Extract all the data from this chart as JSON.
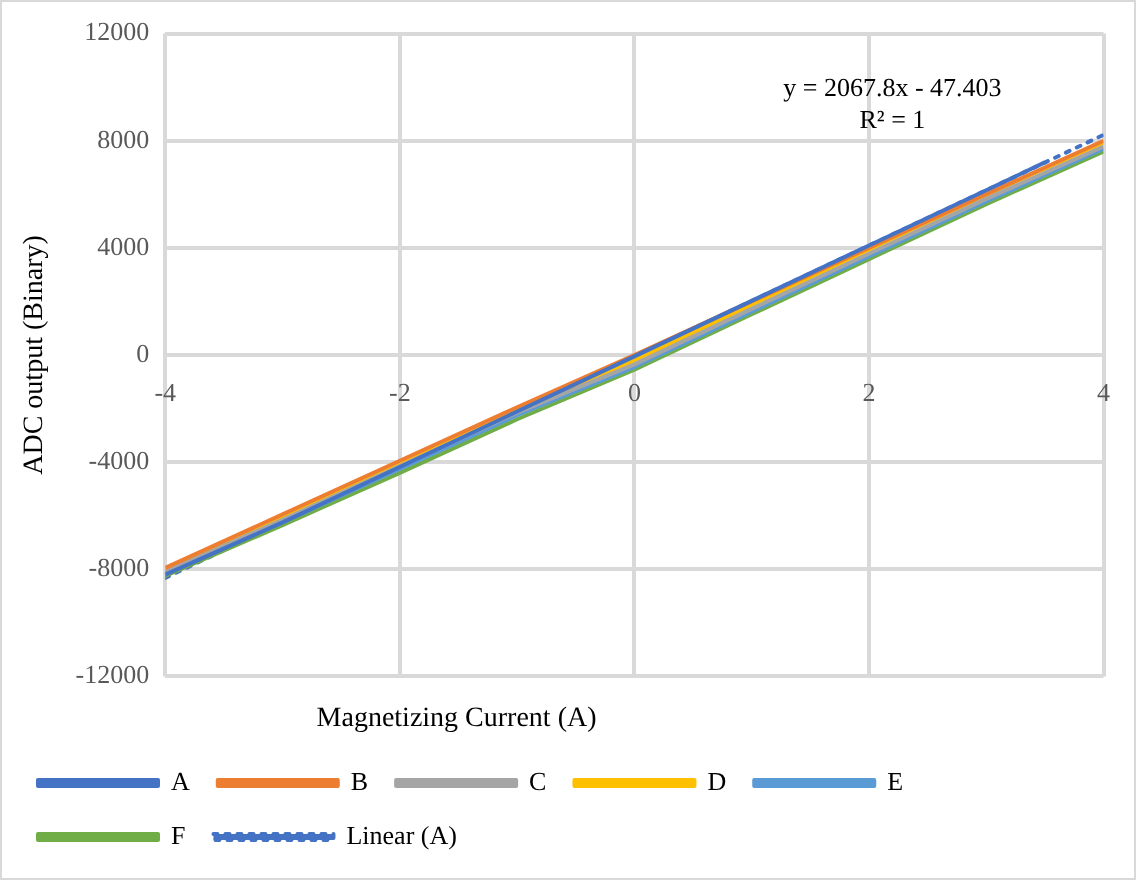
{
  "chart_data": {
    "type": "line",
    "xlabel": "Magnetizing Current (A)",
    "ylabel": "ADC output (Binary)",
    "xlim": [
      -4,
      4
    ],
    "xticks": [
      -4,
      -2,
      0,
      2,
      4
    ],
    "ylim": [
      -12000,
      12000
    ],
    "yticks": [
      -12000,
      -8000,
      -4000,
      0,
      4000,
      8000,
      12000
    ],
    "grid": true,
    "legend": "bottom",
    "marker": "none",
    "line_style": "solid",
    "annotations": [
      "y = 2067.8x - 47.403",
      "R² = 1"
    ],
    "series": [
      {
        "name": "A",
        "color": "#4472c4",
        "x": [
          -4,
          -3,
          -2,
          -1,
          0,
          1,
          2,
          3,
          3.5
        ],
        "values": [
          -8200,
          -6250,
          -4180,
          -2110,
          -50,
          2020,
          4090,
          6150,
          7190
        ]
      },
      {
        "name": "B",
        "color": "#ed7d31",
        "x": [
          -4,
          -3,
          -2,
          -1,
          0,
          1,
          2,
          3,
          4
        ],
        "values": [
          -7950,
          -5950,
          -3950,
          -1950,
          0,
          2000,
          4000,
          6000,
          8000
        ]
      },
      {
        "name": "C",
        "color": "#a5a5a5",
        "x": [
          -4,
          -3,
          -2,
          -1,
          0,
          1,
          2,
          3,
          4
        ],
        "values": [
          -8100,
          -6150,
          -4150,
          -2150,
          -350,
          1720,
          3780,
          5830,
          7780
        ]
      },
      {
        "name": "D",
        "color": "#ffc000",
        "x": [
          -4,
          -3,
          -2,
          -1,
          0,
          1,
          2,
          3,
          4
        ],
        "values": [
          -8050,
          -6050,
          -4050,
          -2050,
          -200,
          1870,
          3930,
          5980,
          7920
        ]
      },
      {
        "name": "E",
        "color": "#5b9bd5",
        "x": [
          -4,
          -3,
          -2,
          -1,
          0,
          1,
          2,
          3,
          4
        ],
        "values": [
          -8150,
          -6250,
          -4250,
          -2250,
          -450,
          1620,
          3680,
          5730,
          7700
        ]
      },
      {
        "name": "F",
        "color": "#70ad47",
        "x": [
          -4,
          -3,
          -2,
          -1,
          0,
          1,
          2,
          3,
          4
        ],
        "values": [
          -8250,
          -6350,
          -4400,
          -2400,
          -550,
          1520,
          3580,
          5630,
          7600
        ]
      },
      {
        "name": "Linear (A)",
        "color": "#4472c4",
        "line_style": "dotted",
        "x": [
          -4,
          4
        ],
        "values": [
          -8320,
          8220
        ]
      }
    ]
  }
}
